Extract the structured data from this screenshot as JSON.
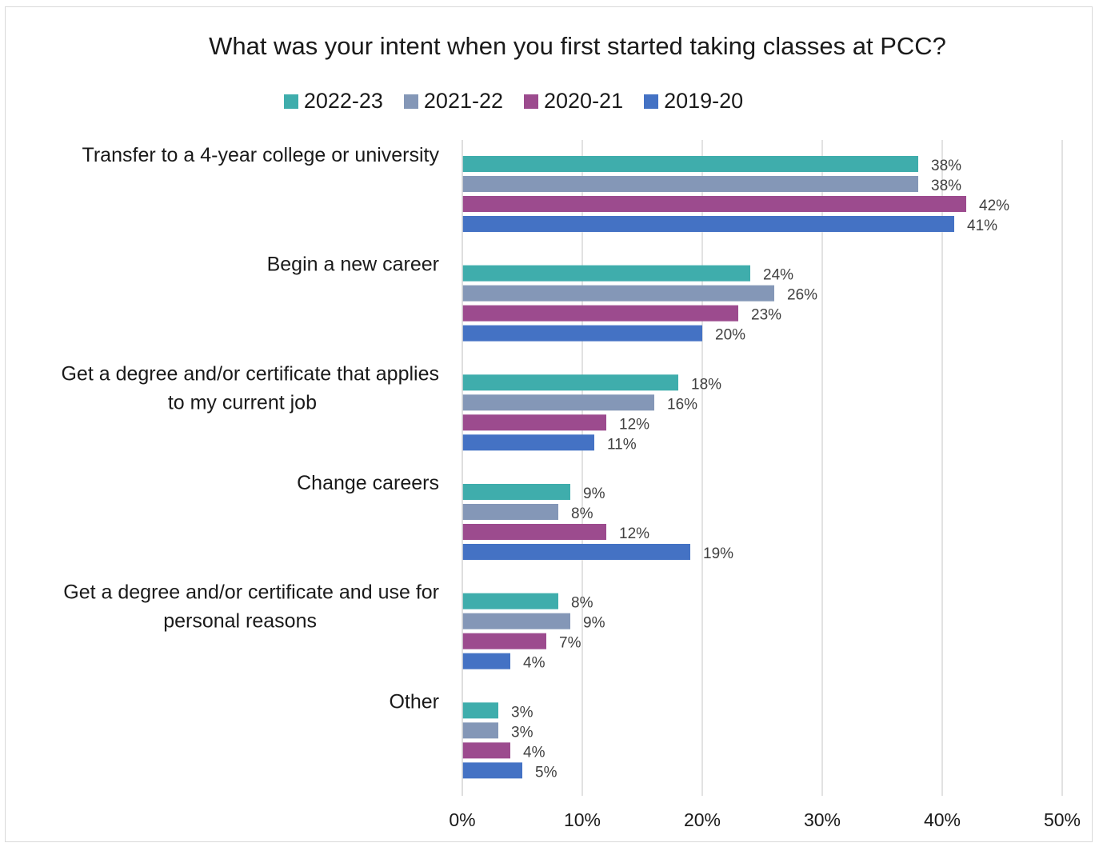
{
  "chart_data": {
    "type": "bar",
    "orientation": "horizontal",
    "title": "What was your intent when you first started taking classes at PCC?",
    "categories": [
      [
        "Transfer to a 4-year college or university"
      ],
      [
        "Begin a new career"
      ],
      [
        "Get a degree and/or certificate that applies",
        "to my current job"
      ],
      [
        "Change careers"
      ],
      [
        "Get a degree and/or certificate and use for",
        "personal reasons"
      ],
      [
        "Other"
      ]
    ],
    "series": [
      {
        "name": "2022-23",
        "color": "#3fadac",
        "values": [
          38,
          24,
          18,
          9,
          8,
          3
        ]
      },
      {
        "name": "2021-22",
        "color": "#8497b7",
        "values": [
          38,
          26,
          16,
          8,
          9,
          3
        ]
      },
      {
        "name": "2020-21",
        "color": "#9c4b8e",
        "values": [
          42,
          23,
          12,
          12,
          7,
          4
        ]
      },
      {
        "name": "2019-20",
        "color": "#4472c4",
        "values": [
          41,
          20,
          11,
          19,
          4,
          5
        ]
      }
    ],
    "xlim": [
      0,
      50
    ],
    "xticks": [
      "0%",
      "10%",
      "20%",
      "30%",
      "40%",
      "50%"
    ],
    "value_suffix": "%",
    "grid": true,
    "legend_position": "top"
  }
}
